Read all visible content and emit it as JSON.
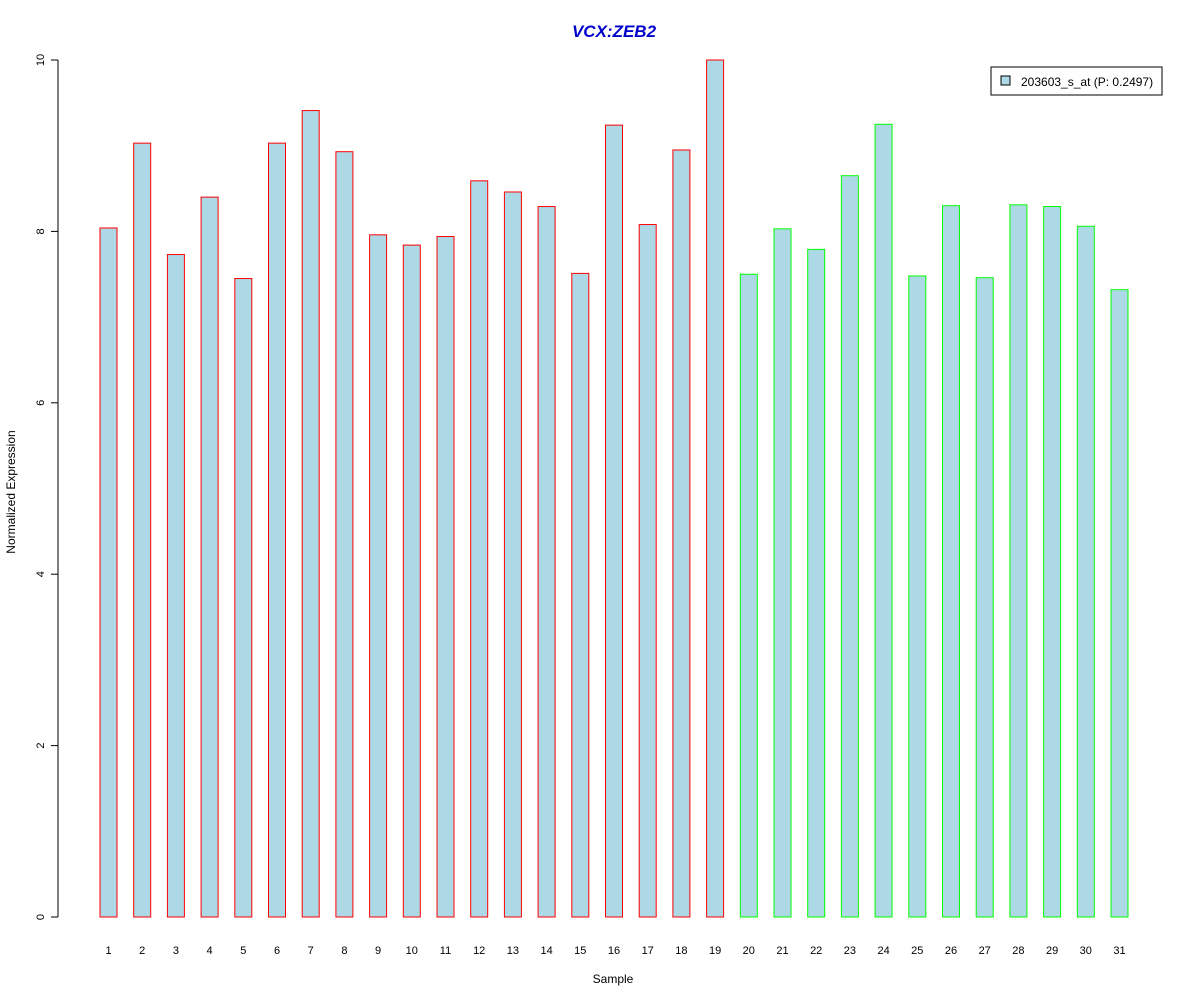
{
  "chart_data": {
    "type": "bar",
    "title": "VCX:ZEB2",
    "xlabel": "Sample",
    "ylabel": "Normalized Expression",
    "ylim": [
      0,
      10
    ],
    "yticks": [
      "0",
      "2",
      "4",
      "6",
      "8",
      "10"
    ],
    "categories": [
      "1",
      "2",
      "3",
      "4",
      "5",
      "6",
      "7",
      "8",
      "9",
      "10",
      "11",
      "12",
      "13",
      "14",
      "15",
      "16",
      "17",
      "18",
      "19",
      "20",
      "21",
      "22",
      "23",
      "24",
      "25",
      "26",
      "27",
      "28",
      "29",
      "30",
      "31"
    ],
    "values": [
      8.04,
      9.03,
      7.73,
      8.4,
      7.45,
      9.03,
      9.41,
      8.93,
      7.96,
      7.84,
      7.94,
      8.59,
      8.46,
      8.29,
      7.51,
      9.24,
      8.08,
      8.95,
      10.0,
      7.5,
      8.03,
      7.79,
      8.65,
      9.25,
      7.48,
      8.3,
      7.46,
      8.31,
      8.29,
      8.06,
      7.32
    ],
    "groups": [
      "red",
      "red",
      "red",
      "red",
      "red",
      "red",
      "red",
      "red",
      "red",
      "red",
      "red",
      "red",
      "red",
      "red",
      "red",
      "red",
      "red",
      "red",
      "red",
      "green",
      "green",
      "green",
      "green",
      "green",
      "green",
      "green",
      "green",
      "green",
      "green",
      "green",
      "green"
    ],
    "grid": false,
    "legend": {
      "placement": "top-right",
      "label": "203603_s_at (P: 0.2497)"
    },
    "colors": {
      "bar_fill": "#add8e6",
      "group_red_border": "#ff0000",
      "group_green_border": "#00ff00",
      "title": "#0000cd",
      "axis": "#000000"
    }
  }
}
